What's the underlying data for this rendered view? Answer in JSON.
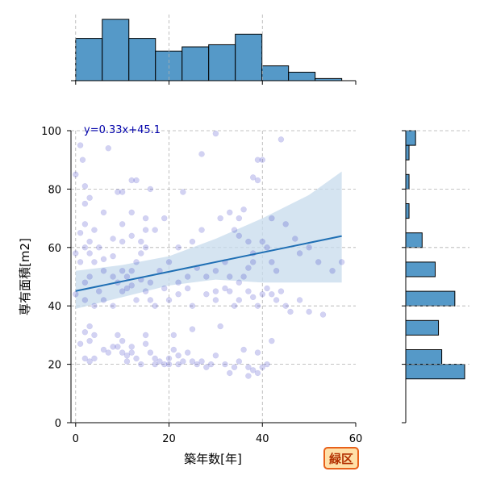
{
  "chart_data": {
    "type": "scatter",
    "xlabel": "築年数[年]",
    "ylabel": "専有面積[m2]",
    "xlim": [
      -1,
      60
    ],
    "ylim": [
      0,
      100
    ],
    "xticks": [
      0,
      20,
      40,
      60
    ],
    "yticks": [
      0,
      20,
      40,
      60,
      80,
      100
    ],
    "grid": true,
    "regression": {
      "label": "y=0.33x+45.1",
      "slope": 0.33,
      "intercept": 45.1,
      "x_range": [
        0,
        57
      ],
      "ci_band": [
        [
          0,
          52,
          39
        ],
        [
          10,
          54,
          43
        ],
        [
          20,
          57,
          47
        ],
        [
          30,
          63,
          49
        ],
        [
          40,
          70,
          48
        ],
        [
          50,
          78,
          48
        ],
        [
          57,
          86,
          48
        ]
      ]
    },
    "points": [
      [
        1,
        95
      ],
      [
        1.5,
        90
      ],
      [
        2,
        75
      ],
      [
        3,
        77
      ],
      [
        2,
        81
      ],
      [
        0,
        85
      ],
      [
        7,
        94
      ],
      [
        9,
        79
      ],
      [
        10,
        79
      ],
      [
        12,
        83
      ],
      [
        13,
        83
      ],
      [
        16,
        80
      ],
      [
        10,
        68
      ],
      [
        12,
        72
      ],
      [
        6,
        72
      ],
      [
        8,
        63
      ],
      [
        10,
        62
      ],
      [
        12,
        64
      ],
      [
        14,
        62
      ],
      [
        15,
        70
      ],
      [
        15,
        66
      ],
      [
        17,
        66
      ],
      [
        19,
        70
      ],
      [
        20,
        55
      ],
      [
        22,
        60
      ],
      [
        25,
        62
      ],
      [
        27,
        92
      ],
      [
        23,
        79
      ],
      [
        27,
        66
      ],
      [
        30,
        99
      ],
      [
        31,
        70
      ],
      [
        33,
        72
      ],
      [
        35,
        70
      ],
      [
        36,
        73
      ],
      [
        34,
        66
      ],
      [
        35,
        64
      ],
      [
        37,
        62
      ],
      [
        38,
        58
      ],
      [
        40,
        62
      ],
      [
        41,
        60
      ],
      [
        42,
        55
      ],
      [
        43,
        52
      ],
      [
        40,
        90
      ],
      [
        39,
        90
      ],
      [
        38,
        84
      ],
      [
        44,
        97
      ],
      [
        39,
        83
      ],
      [
        42,
        70
      ],
      [
        45,
        68
      ],
      [
        47,
        63
      ],
      [
        48,
        58
      ],
      [
        50,
        60
      ],
      [
        52,
        55
      ],
      [
        55,
        52
      ],
      [
        57,
        55
      ],
      [
        2,
        60
      ],
      [
        1,
        55
      ],
      [
        3,
        58
      ],
      [
        4,
        55
      ],
      [
        6,
        52
      ],
      [
        8,
        50
      ],
      [
        9,
        48
      ],
      [
        10,
        45
      ],
      [
        11,
        50
      ],
      [
        12,
        52
      ],
      [
        13,
        55
      ],
      [
        14,
        58
      ],
      [
        15,
        60
      ],
      [
        11,
        46
      ],
      [
        13,
        42
      ],
      [
        15,
        45
      ],
      [
        16,
        42
      ],
      [
        17,
        40
      ],
      [
        19,
        46
      ],
      [
        20,
        42
      ],
      [
        22,
        44
      ],
      [
        24,
        46
      ],
      [
        25,
        40
      ],
      [
        28,
        44
      ],
      [
        30,
        42
      ],
      [
        32,
        46
      ],
      [
        33,
        45
      ],
      [
        34,
        40
      ],
      [
        35,
        42
      ],
      [
        37,
        45
      ],
      [
        38,
        43
      ],
      [
        39,
        40
      ],
      [
        40,
        44
      ],
      [
        41,
        46
      ],
      [
        42,
        44
      ],
      [
        43,
        42
      ],
      [
        44,
        45
      ],
      [
        45,
        40
      ],
      [
        46,
        38
      ],
      [
        48,
        42
      ],
      [
        50,
        38
      ],
      [
        53,
        37
      ],
      [
        1,
        65
      ],
      [
        2,
        68
      ],
      [
        3,
        62
      ],
      [
        0,
        58
      ],
      [
        2,
        48
      ],
      [
        3,
        50
      ],
      [
        5,
        45
      ],
      [
        6,
        42
      ],
      [
        8,
        40
      ],
      [
        4,
        40
      ],
      [
        2,
        42
      ],
      [
        0,
        44
      ],
      [
        3,
        33
      ],
      [
        2,
        31
      ],
      [
        3,
        28
      ],
      [
        4,
        30
      ],
      [
        1,
        27
      ],
      [
        2,
        22
      ],
      [
        3,
        21
      ],
      [
        4,
        22
      ],
      [
        6,
        25
      ],
      [
        7,
        24
      ],
      [
        8,
        26
      ],
      [
        9,
        26
      ],
      [
        9,
        30
      ],
      [
        10,
        28
      ],
      [
        10,
        24
      ],
      [
        11,
        23
      ],
      [
        11,
        21
      ],
      [
        12,
        26
      ],
      [
        12,
        24
      ],
      [
        13,
        22
      ],
      [
        14,
        20
      ],
      [
        15,
        30
      ],
      [
        15,
        27
      ],
      [
        16,
        24
      ],
      [
        17,
        22
      ],
      [
        17,
        20
      ],
      [
        18,
        21
      ],
      [
        19,
        20
      ],
      [
        20,
        22
      ],
      [
        20,
        20
      ],
      [
        21,
        30
      ],
      [
        21,
        25
      ],
      [
        22,
        23
      ],
      [
        22,
        20
      ],
      [
        23,
        21
      ],
      [
        24,
        24
      ],
      [
        25,
        32
      ],
      [
        25,
        21
      ],
      [
        26,
        20
      ],
      [
        27,
        21
      ],
      [
        28,
        19
      ],
      [
        29,
        20
      ],
      [
        30,
        23
      ],
      [
        31,
        33
      ],
      [
        32,
        20
      ],
      [
        33,
        17
      ],
      [
        34,
        19
      ],
      [
        35,
        21
      ],
      [
        36,
        25
      ],
      [
        37,
        19
      ],
      [
        37,
        16
      ],
      [
        38,
        18
      ],
      [
        39,
        17
      ],
      [
        39,
        24
      ],
      [
        40,
        19
      ],
      [
        41,
        20
      ],
      [
        42,
        28
      ],
      [
        30,
        45
      ],
      [
        33,
        50
      ],
      [
        35,
        48
      ],
      [
        36,
        50
      ],
      [
        37,
        53
      ],
      [
        38,
        55
      ],
      [
        32,
        55
      ],
      [
        30,
        52
      ],
      [
        28,
        50
      ],
      [
        26,
        53
      ],
      [
        24,
        50
      ],
      [
        22,
        48
      ],
      [
        18,
        52
      ],
      [
        16,
        48
      ],
      [
        14,
        49
      ],
      [
        12,
        47
      ],
      [
        10,
        52
      ],
      [
        8,
        57
      ],
      [
        6,
        56
      ],
      [
        5,
        60
      ],
      [
        4,
        66
      ]
    ],
    "top_histogram": {
      "bins": [
        0,
        5.7,
        11.4,
        17.1,
        22.8,
        28.5,
        34.2,
        39.9,
        45.6,
        51.3,
        57
      ],
      "counts": [
        20,
        29,
        20,
        14,
        16,
        17,
        22,
        7,
        4,
        1
      ]
    },
    "right_histogram": {
      "bins": [
        15,
        20,
        25,
        30,
        35,
        40,
        45,
        50,
        55,
        60,
        65,
        70,
        75,
        80,
        85,
        90,
        95,
        100
      ],
      "counts": [
        18,
        11,
        0,
        10,
        0,
        15,
        0,
        9,
        0,
        5,
        0,
        1,
        0,
        1,
        0,
        1,
        3
      ]
    }
  },
  "badge": {
    "text": "緑区",
    "color_border": "#e8611a",
    "color_fill": "#ffe0a8"
  },
  "colors": {
    "hist_fill": "#5599c8",
    "regression_line": "#1f6fb4",
    "ci_band": "#c7dbec",
    "point_fill": "#2020c0",
    "grid": "#b0b0b0",
    "eq_text": "#0000aa"
  }
}
